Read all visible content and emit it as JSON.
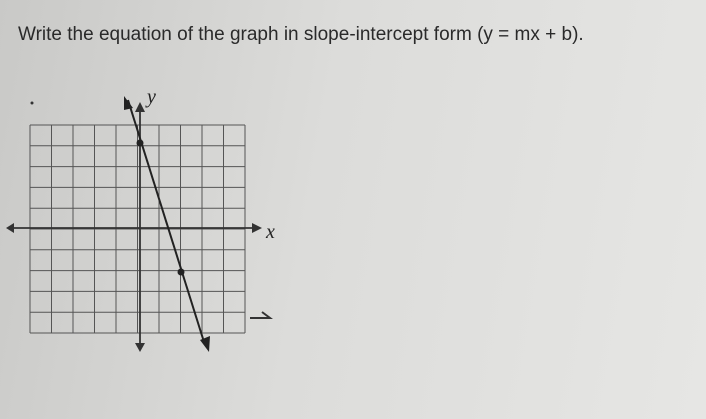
{
  "question": "Write the equation of the graph in slope-intercept form (y = mx + b).",
  "graph": {
    "y_axis_label": "y",
    "x_axis_label": "x"
  }
}
